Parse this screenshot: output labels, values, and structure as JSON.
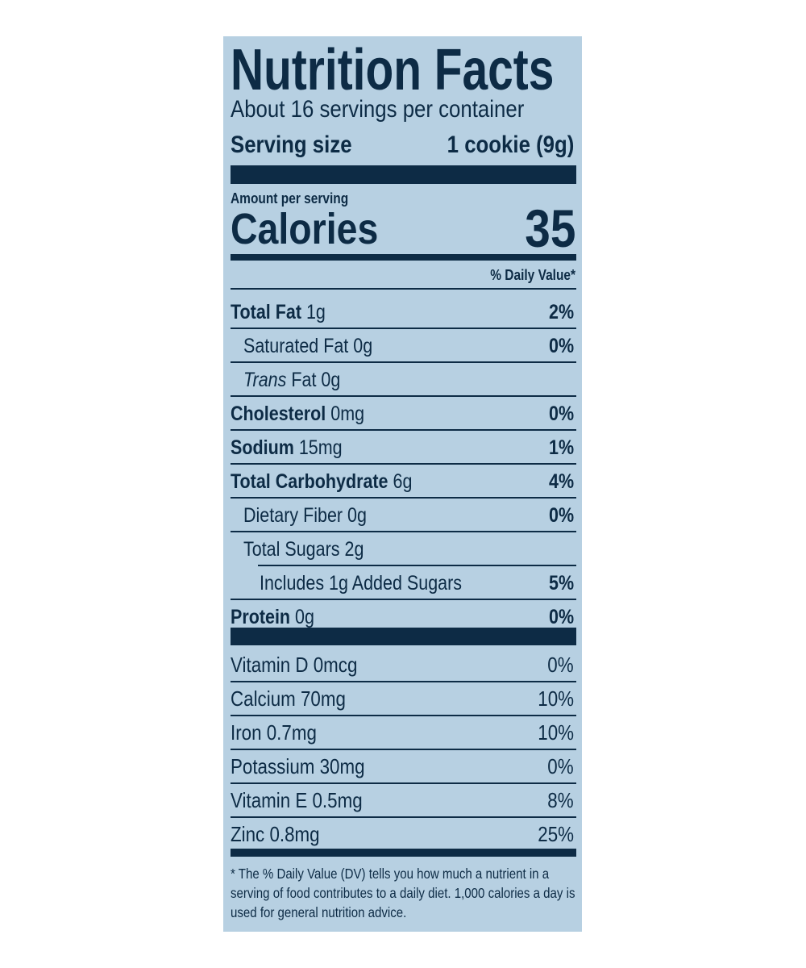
{
  "label": {
    "title": "Nutrition Facts",
    "servings": "About 16 servings per container",
    "serving_size_label": "Serving size",
    "serving_size": "1 cookie (9g)",
    "amount_per_serving": "Amount per serving",
    "calories_label": "Calories",
    "calories": "35",
    "dv_header": "% Daily Value*",
    "nutrients": [
      {
        "name": "Total Fat",
        "amount": "1g",
        "dv": "2%",
        "sub": [
          {
            "text": "Saturated Fat 0g",
            "dv": "0%"
          },
          {
            "italic": "Trans",
            "text": "Fat 0g"
          }
        ]
      },
      {
        "name": "Cholesterol",
        "amount": "0mg",
        "dv": "0%"
      },
      {
        "name": "Sodium",
        "amount": "15mg",
        "dv": "1%"
      },
      {
        "name": "Total Carbohydrate",
        "amount": "6g",
        "dv": "4%",
        "sub": [
          {
            "text": "Dietary Fiber 0g",
            "dv": "0%"
          },
          {
            "text": "Total Sugars 2g",
            "sub": [
              {
                "text": "Includes 1g Added Sugars",
                "dv": "5%"
              }
            ]
          }
        ]
      },
      {
        "name": "Protein",
        "amount": "0g",
        "dv": "0%"
      }
    ],
    "vitamins": [
      {
        "text": "Vitamin D 0mcg",
        "dv": "0%"
      },
      {
        "text": "Calcium 70mg",
        "dv": "10%"
      },
      {
        "text": "Iron 0.7mg",
        "dv": "10%"
      },
      {
        "text": "Potassium 30mg",
        "dv": "0%"
      },
      {
        "text": "Vitamin E 0.5mg",
        "dv": "8%"
      },
      {
        "text": "Zinc 0.8mg",
        "dv": "25%"
      }
    ],
    "footnote": "* The % Daily Value (DV) tells you how much a nutrient in a serving of food contributes to a daily diet. 1,000 calories a day is used for general nutrition advice."
  }
}
